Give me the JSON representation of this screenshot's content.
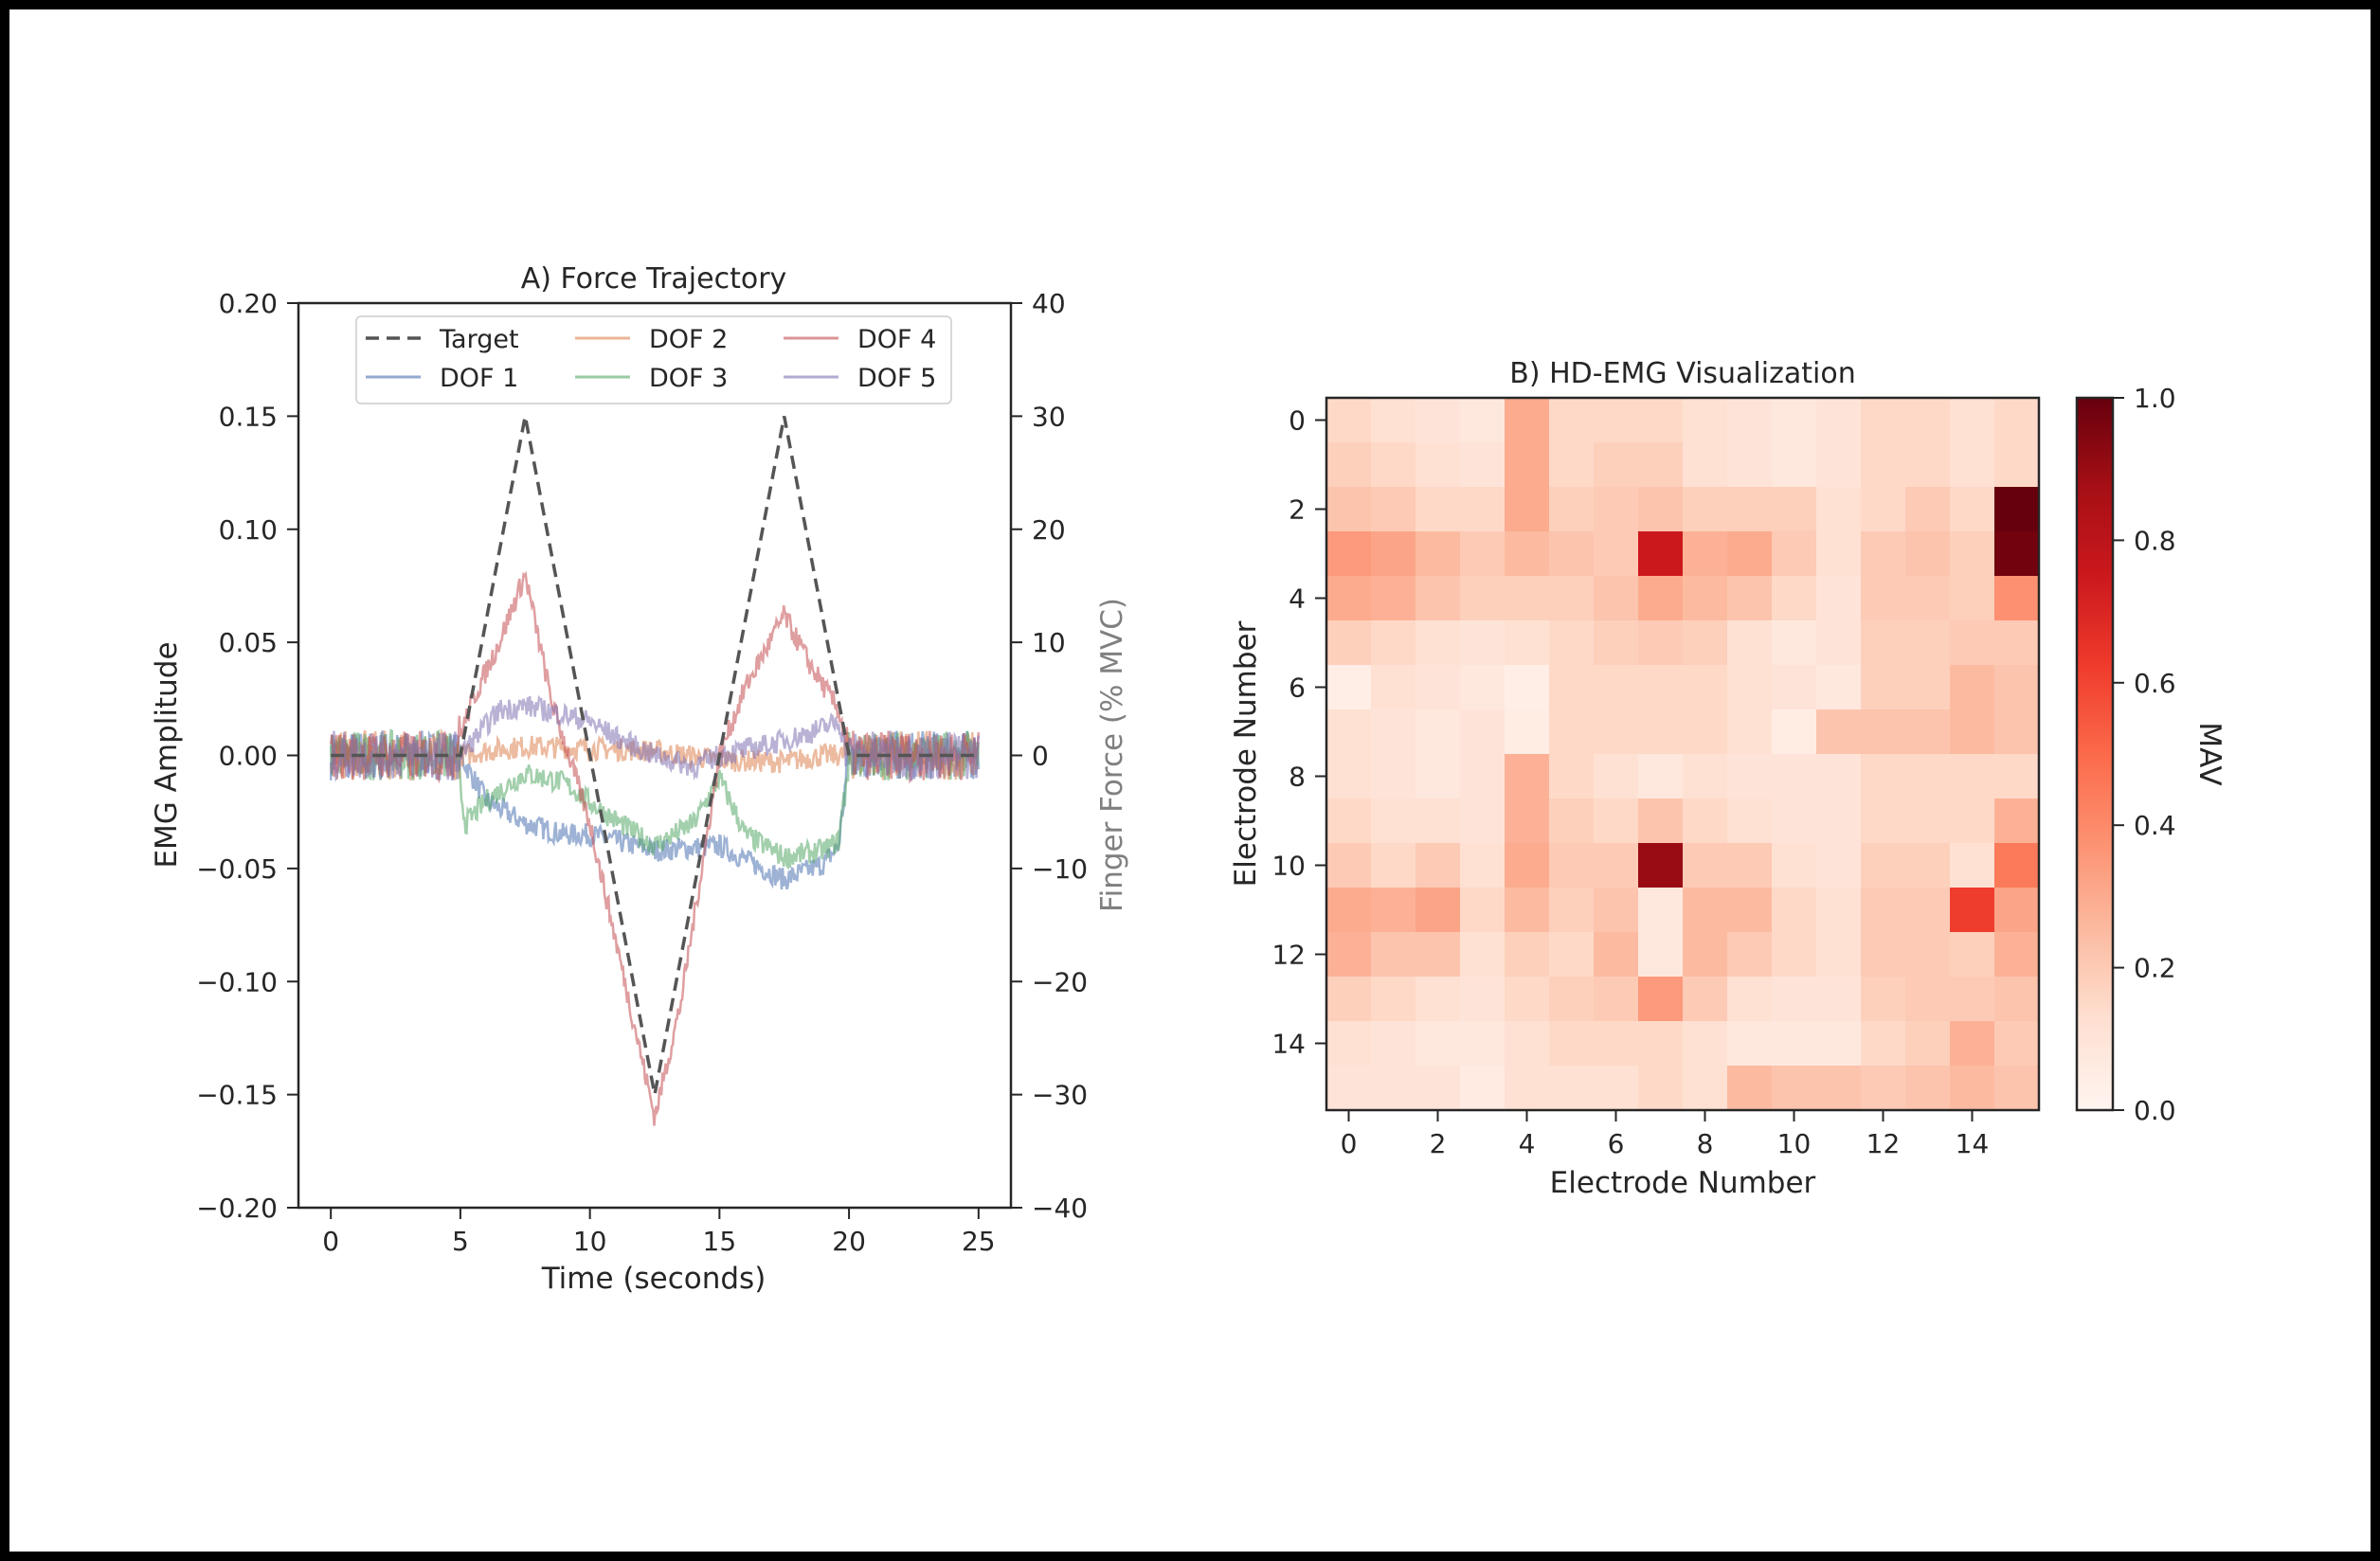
{
  "chart_data": [
    {
      "type": "line",
      "title": "A) Force Trajectory",
      "xlabel": "Time (seconds)",
      "ylabel": "EMG Amplitude",
      "y2label": "Finger Force (% MVC)",
      "xlim": [
        -1.25,
        26.25
      ],
      "ylim": [
        -0.2,
        0.2
      ],
      "y2lim": [
        -40,
        40
      ],
      "xticks": [
        "0",
        "5",
        "10",
        "15",
        "20",
        "25"
      ],
      "yticks": [
        "−0.20",
        "−0.15",
        "−0.10",
        "−0.05",
        "0.00",
        "0.05",
        "0.10",
        "0.15",
        "0.20"
      ],
      "y2ticks": [
        "−40",
        "−30",
        "−20",
        "−10",
        "0",
        "10",
        "20",
        "30",
        "40"
      ],
      "legend_position": "upper-center",
      "series": [
        {
          "name": "Target",
          "axis": "right",
          "style": "dashed",
          "color": "#555555",
          "x": [
            0,
            5,
            7.5,
            12.5,
            17.5,
            20,
            25
          ],
          "y": [
            0,
            0,
            30,
            -30,
            30,
            0,
            0
          ]
        },
        {
          "name": "DOF 1",
          "axis": "left",
          "color": "#4c72b0",
          "x": [
            0,
            5,
            6,
            7.5,
            9,
            10,
            12.5,
            15,
            17.5,
            19,
            19.6,
            20,
            25
          ],
          "y": [
            0,
            0,
            -0.02,
            -0.03,
            -0.035,
            -0.035,
            -0.042,
            -0.04,
            -0.055,
            -0.048,
            -0.04,
            0,
            0
          ]
        },
        {
          "name": "DOF 2",
          "axis": "left",
          "color": "#dd8452",
          "x": [
            0,
            5,
            6,
            7.5,
            10,
            12.5,
            15,
            17.5,
            19,
            20,
            25
          ],
          "y": [
            0,
            0,
            0.002,
            0.004,
            0.003,
            0.002,
            -0.002,
            -0.003,
            0,
            0,
            0
          ]
        },
        {
          "name": "DOF 3",
          "axis": "left",
          "color": "#55a868",
          "x": [
            0,
            4.8,
            5.2,
            6,
            7.5,
            9,
            10.5,
            12.5,
            14,
            15,
            16,
            17.5,
            19,
            19.6,
            20,
            25
          ],
          "y": [
            0,
            0,
            -0.03,
            -0.02,
            -0.008,
            -0.012,
            -0.025,
            -0.04,
            -0.03,
            -0.01,
            -0.035,
            -0.045,
            -0.042,
            -0.038,
            0,
            0
          ]
        },
        {
          "name": "DOF 4",
          "axis": "left",
          "color": "#c44e52",
          "x": [
            0,
            4.7,
            5.5,
            6.5,
            7.5,
            8.5,
            10,
            12.5,
            13.5,
            15,
            16,
            17.5,
            18.5,
            19.6,
            20,
            25
          ],
          "y": [
            0,
            0,
            0.025,
            0.05,
            0.08,
            0.025,
            -0.03,
            -0.16,
            -0.11,
            0,
            0.03,
            0.062,
            0.04,
            0.02,
            0,
            0
          ]
        },
        {
          "name": "DOF 5",
          "axis": "left",
          "color": "#8172b3",
          "x": [
            0,
            5,
            6.5,
            7.5,
            9,
            10,
            11,
            12.5,
            14,
            15,
            17,
            18.5,
            19.6,
            20,
            25
          ],
          "y": [
            0,
            0,
            0.02,
            0.022,
            0.018,
            0.015,
            0.008,
            0,
            -0.005,
            0,
            0.005,
            0.01,
            0.015,
            0,
            0
          ]
        }
      ]
    },
    {
      "type": "heatmap",
      "title": "B) HD-EMG Visualization",
      "xlabel": "Electrode Number",
      "ylabel": "Electrode Number",
      "colorbar_label": "MAV",
      "colormap": "Reds",
      "vmin": 0.0,
      "vmax": 1.0,
      "xticks": [
        "0",
        "2",
        "4",
        "6",
        "8",
        "10",
        "12",
        "14"
      ],
      "yticks": [
        "0",
        "2",
        "4",
        "6",
        "8",
        "10",
        "12",
        "14"
      ],
      "cbar_ticks": [
        "0.0",
        "0.2",
        "0.4",
        "0.6",
        "0.8",
        "1.0"
      ],
      "values": [
        [
          0.15,
          0.12,
          0.1,
          0.08,
          0.3,
          0.15,
          0.15,
          0.15,
          0.12,
          0.1,
          0.08,
          0.1,
          0.15,
          0.15,
          0.12,
          0.15
        ],
        [
          0.18,
          0.15,
          0.12,
          0.1,
          0.3,
          0.15,
          0.18,
          0.18,
          0.12,
          0.1,
          0.08,
          0.1,
          0.15,
          0.15,
          0.12,
          0.15
        ],
        [
          0.22,
          0.2,
          0.15,
          0.15,
          0.3,
          0.18,
          0.2,
          0.22,
          0.18,
          0.18,
          0.18,
          0.12,
          0.15,
          0.2,
          0.15,
          1.0
        ],
        [
          0.35,
          0.32,
          0.25,
          0.2,
          0.25,
          0.22,
          0.2,
          0.75,
          0.28,
          0.3,
          0.2,
          0.12,
          0.2,
          0.22,
          0.18,
          0.98
        ],
        [
          0.3,
          0.28,
          0.22,
          0.18,
          0.18,
          0.18,
          0.22,
          0.3,
          0.25,
          0.22,
          0.15,
          0.1,
          0.2,
          0.2,
          0.18,
          0.38
        ],
        [
          0.18,
          0.15,
          0.12,
          0.1,
          0.12,
          0.15,
          0.18,
          0.2,
          0.18,
          0.12,
          0.08,
          0.1,
          0.18,
          0.18,
          0.2,
          0.2
        ],
        [
          0.04,
          0.12,
          0.1,
          0.08,
          0.04,
          0.15,
          0.15,
          0.15,
          0.15,
          0.12,
          0.1,
          0.08,
          0.18,
          0.18,
          0.25,
          0.22
        ],
        [
          0.12,
          0.1,
          0.08,
          0.1,
          0.05,
          0.15,
          0.15,
          0.15,
          0.15,
          0.12,
          0.05,
          0.22,
          0.22,
          0.22,
          0.25,
          0.22
        ],
        [
          0.12,
          0.1,
          0.08,
          0.1,
          0.28,
          0.15,
          0.12,
          0.08,
          0.12,
          0.1,
          0.1,
          0.1,
          0.15,
          0.15,
          0.15,
          0.15
        ],
        [
          0.15,
          0.12,
          0.12,
          0.1,
          0.28,
          0.18,
          0.15,
          0.22,
          0.15,
          0.12,
          0.1,
          0.1,
          0.15,
          0.15,
          0.15,
          0.28
        ],
        [
          0.2,
          0.15,
          0.2,
          0.12,
          0.3,
          0.2,
          0.2,
          0.9,
          0.2,
          0.2,
          0.12,
          0.1,
          0.18,
          0.18,
          0.12,
          0.45
        ],
        [
          0.3,
          0.28,
          0.32,
          0.15,
          0.25,
          0.18,
          0.22,
          0.08,
          0.25,
          0.25,
          0.15,
          0.12,
          0.2,
          0.2,
          0.62,
          0.32
        ],
        [
          0.28,
          0.22,
          0.22,
          0.12,
          0.18,
          0.15,
          0.25,
          0.08,
          0.25,
          0.2,
          0.15,
          0.12,
          0.2,
          0.2,
          0.18,
          0.28
        ],
        [
          0.18,
          0.15,
          0.12,
          0.1,
          0.15,
          0.18,
          0.2,
          0.35,
          0.2,
          0.12,
          0.1,
          0.1,
          0.18,
          0.2,
          0.2,
          0.22
        ],
        [
          0.12,
          0.1,
          0.08,
          0.08,
          0.12,
          0.15,
          0.15,
          0.15,
          0.12,
          0.08,
          0.08,
          0.08,
          0.15,
          0.18,
          0.28,
          0.2
        ],
        [
          0.1,
          0.1,
          0.1,
          0.06,
          0.12,
          0.12,
          0.12,
          0.15,
          0.12,
          0.25,
          0.22,
          0.22,
          0.2,
          0.22,
          0.25,
          0.22
        ]
      ]
    }
  ]
}
